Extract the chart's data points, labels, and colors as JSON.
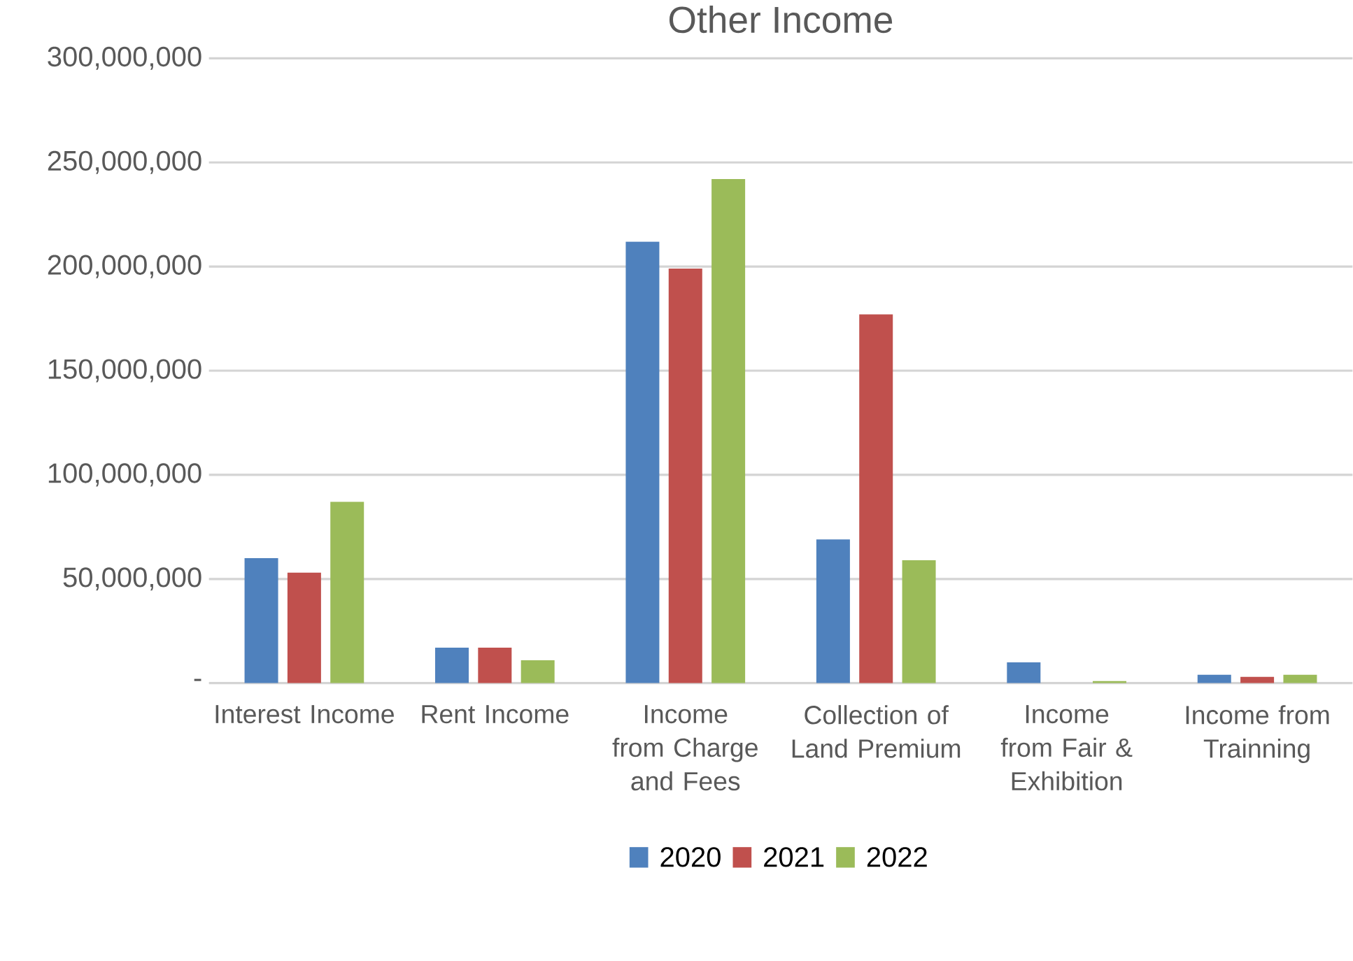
{
  "chart_data": {
    "type": "bar",
    "title": "Other Income",
    "categories": [
      "Interest Income",
      "Rent Income",
      "Income from Charge and Fees",
      "Collection of Land Premium",
      "Income from Fair & Exhibition",
      "Income from Trainning"
    ],
    "series": [
      {
        "name": "2020",
        "color": "#4f81bd",
        "values": [
          60000000,
          17000000,
          212000000,
          69000000,
          10000000,
          4000000
        ]
      },
      {
        "name": "2021",
        "color": "#c0504d",
        "values": [
          53000000,
          17000000,
          199000000,
          177000000,
          0,
          3000000
        ]
      },
      {
        "name": "2022",
        "color": "#9bbb59",
        "values": [
          87000000,
          11000000,
          242000000,
          59000000,
          1000000,
          4000000
        ]
      }
    ],
    "ylim": [
      0,
      300000000
    ],
    "yticks": [
      {
        "value": 0,
        "label": "-"
      },
      {
        "value": 50000000,
        "label": "50,000,000"
      },
      {
        "value": 100000000,
        "label": "100,000,000"
      },
      {
        "value": 150000000,
        "label": "150,000,000"
      },
      {
        "value": 200000000,
        "label": "200,000,000"
      },
      {
        "value": 250000000,
        "label": "250,000,000"
      },
      {
        "value": 300000000,
        "label": "300,000,000"
      }
    ],
    "grid": "y",
    "legend": "bottom"
  }
}
